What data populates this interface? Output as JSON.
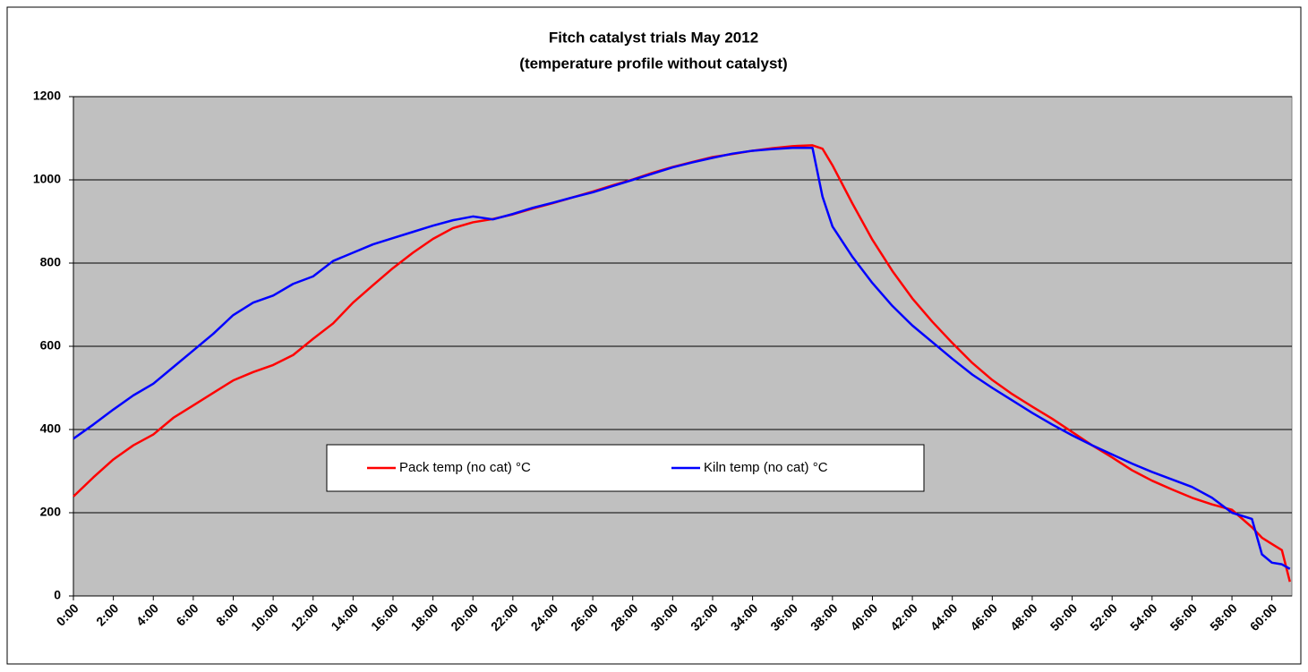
{
  "chart_data": {
    "type": "line",
    "title": "Fitch catalyst trials May 2012",
    "subtitle": "(temperature profile without catalyst)",
    "x": [
      0,
      1,
      2,
      3,
      4,
      5,
      6,
      7,
      8,
      9,
      10,
      11,
      12,
      13,
      14,
      15,
      16,
      17,
      18,
      19,
      20,
      21,
      22,
      23,
      24,
      25,
      26,
      27,
      28,
      29,
      30,
      31,
      32,
      33,
      34,
      35,
      36,
      37,
      37.5,
      38,
      39,
      40,
      41,
      42,
      43,
      44,
      45,
      46,
      47,
      48,
      49,
      50,
      51,
      52,
      53,
      54,
      55,
      56,
      57,
      58,
      59,
      59.5,
      60,
      60.5,
      60.9
    ],
    "series": [
      {
        "name": "Pack temp (no cat) °C",
        "color": "#ff0000",
        "values": [
          239,
          285,
          328,
          362,
          388,
          428,
          458,
          488,
          518,
          538,
          555,
          579,
          618,
          655,
          705,
          747,
          788,
          825,
          858,
          884,
          898,
          906,
          917,
          931,
          944,
          958,
          972,
          987,
          1001,
          1017,
          1031,
          1043,
          1055,
          1062,
          1070,
          1076,
          1081,
          1083,
          1075,
          1035,
          943,
          856,
          781,
          715,
          659,
          608,
          560,
          519,
          485,
          455,
          426,
          394,
          362,
          333,
          302,
          277,
          256,
          236,
          220,
          207,
          165,
          140,
          125,
          110,
          34
        ]
      },
      {
        "name": "Kiln temp (no cat) °C",
        "color": "#0000ff",
        "values": [
          378,
          412,
          448,
          482,
          510,
          550,
          590,
          630,
          675,
          705,
          722,
          750,
          768,
          805,
          825,
          845,
          860,
          875,
          890,
          903,
          912,
          905,
          918,
          933,
          945,
          958,
          970,
          985,
          1000,
          1015,
          1030,
          1042,
          1053,
          1063,
          1070,
          1074,
          1077,
          1077,
          960,
          888,
          815,
          752,
          697,
          650,
          610,
          570,
          532,
          500,
          470,
          440,
          412,
          386,
          362,
          340,
          318,
          298,
          280,
          262,
          236,
          200,
          185,
          100,
          80,
          76,
          65
        ]
      }
    ],
    "xlim": [
      0,
      61
    ],
    "xticks": [
      {
        "value": 0,
        "label": "0:00"
      },
      {
        "value": 2,
        "label": "2:00"
      },
      {
        "value": 4,
        "label": "4:00"
      },
      {
        "value": 6,
        "label": "6:00"
      },
      {
        "value": 8,
        "label": "8:00"
      },
      {
        "value": 10,
        "label": "10:00"
      },
      {
        "value": 12,
        "label": "12:00"
      },
      {
        "value": 14,
        "label": "14:00"
      },
      {
        "value": 16,
        "label": "16:00"
      },
      {
        "value": 18,
        "label": "18:00"
      },
      {
        "value": 20,
        "label": "20:00"
      },
      {
        "value": 22,
        "label": "22:00"
      },
      {
        "value": 24,
        "label": "24:00"
      },
      {
        "value": 26,
        "label": "26:00"
      },
      {
        "value": 28,
        "label": "28:00"
      },
      {
        "value": 30,
        "label": "30:00"
      },
      {
        "value": 32,
        "label": "32:00"
      },
      {
        "value": 34,
        "label": "34:00"
      },
      {
        "value": 36,
        "label": "36:00"
      },
      {
        "value": 38,
        "label": "38:00"
      },
      {
        "value": 40,
        "label": "40:00"
      },
      {
        "value": 42,
        "label": "42:00"
      },
      {
        "value": 44,
        "label": "44:00"
      },
      {
        "value": 46,
        "label": "46:00"
      },
      {
        "value": 48,
        "label": "48:00"
      },
      {
        "value": 50,
        "label": "50:00"
      },
      {
        "value": 52,
        "label": "52:00"
      },
      {
        "value": 54,
        "label": "54:00"
      },
      {
        "value": 56,
        "label": "56:00"
      },
      {
        "value": 58,
        "label": "58:00"
      },
      {
        "value": 60,
        "label": "60:00"
      }
    ],
    "ylim": [
      0,
      1200
    ],
    "yticks": [
      0,
      200,
      400,
      600,
      800,
      1000,
      1200
    ],
    "grid": true
  }
}
